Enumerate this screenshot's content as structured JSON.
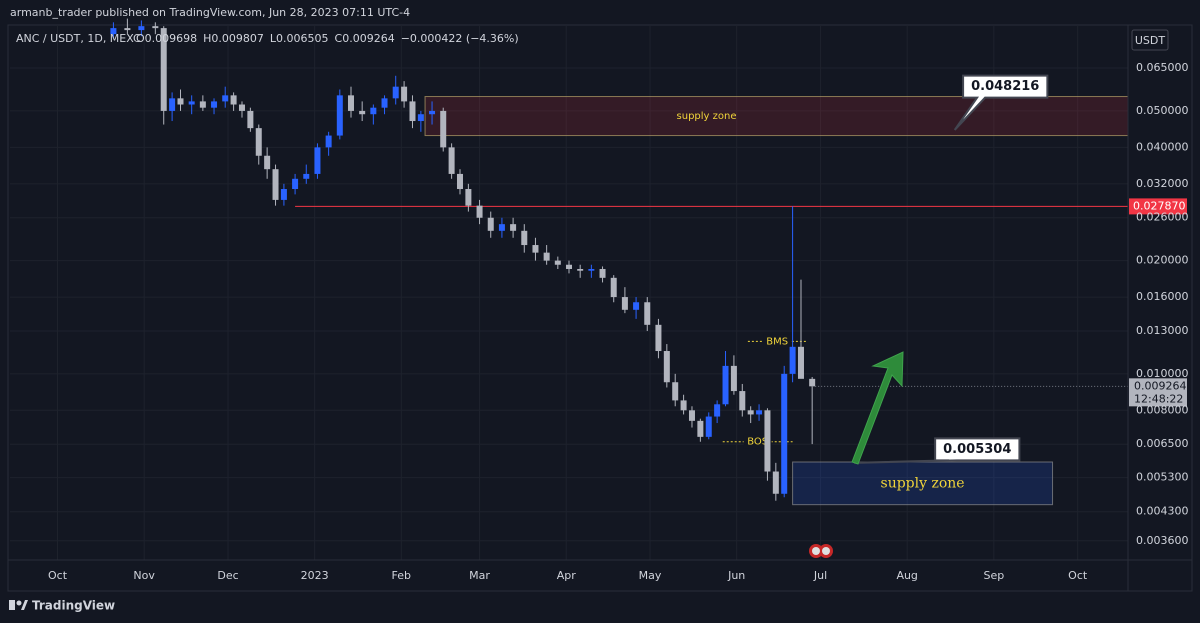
{
  "header": {
    "publisher": "armanb_trader published on TradingView.com, Jun 28, 2023 07:11 UTC-4"
  },
  "footer": {
    "brand": "TradingView"
  },
  "chart_data": {
    "type": "candlestick",
    "symbol": "ANC / USDT, 1D, MEXC",
    "ohlc_labels": [
      "O0.009698",
      "H0.009807",
      "L0.006505",
      "C0.009264",
      "−0.000422 (−4.36%)"
    ],
    "currency": "USDT",
    "log_scale": true,
    "grid": true,
    "up_color": "#2962ff",
    "down_color": "#b2b5be",
    "xlim": [
      -17,
      383
    ],
    "xticks": [
      {
        "value": 0,
        "label": "Oct"
      },
      {
        "value": 31,
        "label": "Nov"
      },
      {
        "value": 61,
        "label": "Dec"
      },
      {
        "value": 92,
        "label": "2023"
      },
      {
        "value": 123,
        "label": "Feb"
      },
      {
        "value": 151,
        "label": "Mar"
      },
      {
        "value": 182,
        "label": "Apr"
      },
      {
        "value": 212,
        "label": "May"
      },
      {
        "value": 243,
        "label": "Jun"
      },
      {
        "value": 273,
        "label": "Jul"
      },
      {
        "value": 304,
        "label": "Aug"
      },
      {
        "value": 335,
        "label": "Sep"
      },
      {
        "value": 365,
        "label": "Oct"
      }
    ],
    "ylim": [
      0.0032,
      0.0846
    ],
    "yticks": [
      {
        "value": 0.065,
        "label": "0.065000"
      },
      {
        "value": 0.05,
        "label": "0.050000"
      },
      {
        "value": 0.04,
        "label": "0.040000"
      },
      {
        "value": 0.032,
        "label": "0.032000"
      },
      {
        "value": 0.026,
        "label": "0.026000"
      },
      {
        "value": 0.02,
        "label": "0.020000"
      },
      {
        "value": 0.016,
        "label": "0.016000"
      },
      {
        "value": 0.013,
        "label": "0.013000"
      },
      {
        "value": 0.01,
        "label": "0.010000"
      },
      {
        "value": 0.008,
        "label": "0.008000"
      },
      {
        "value": 0.0065,
        "label": "0.006500"
      },
      {
        "value": 0.0053,
        "label": "0.005300"
      },
      {
        "value": 0.0043,
        "label": "0.004300"
      },
      {
        "value": 0.0036,
        "label": "0.003600"
      }
    ],
    "candles": {
      "x": [
        20,
        25,
        30,
        35,
        38,
        41,
        44,
        48,
        52,
        56,
        60,
        63,
        66,
        69,
        72,
        75,
        78,
        81,
        85,
        89,
        93,
        97,
        101,
        105,
        109,
        113,
        117,
        121,
        124,
        127,
        130,
        134,
        138,
        141,
        144,
        147,
        151,
        155,
        159,
        163,
        167,
        171,
        175,
        179,
        183,
        187,
        191,
        195,
        199,
        203,
        207,
        211,
        215,
        218,
        221,
        224,
        227,
        230,
        233,
        236,
        239,
        242,
        245,
        248,
        251,
        254,
        257,
        260,
        263,
        266,
        270
      ],
      "open": [
        0.08,
        0.083,
        0.082,
        0.084,
        0.083,
        0.05,
        0.054,
        0.052,
        0.053,
        0.051,
        0.053,
        0.055,
        0.052,
        0.05,
        0.045,
        0.038,
        0.035,
        0.029,
        0.031,
        0.033,
        0.034,
        0.04,
        0.043,
        0.055,
        0.05,
        0.049,
        0.051,
        0.054,
        0.058,
        0.053,
        0.047,
        0.049,
        0.05,
        0.04,
        0.034,
        0.031,
        0.028,
        0.026,
        0.024,
        0.025,
        0.024,
        0.022,
        0.021,
        0.02,
        0.0195,
        0.019,
        0.0188,
        0.019,
        0.018,
        0.016,
        0.0148,
        0.0155,
        0.0135,
        0.0115,
        0.0095,
        0.0085,
        0.008,
        0.0075,
        0.0068,
        0.0077,
        0.0083,
        0.0105,
        0.009,
        0.008,
        0.0078,
        0.008,
        0.0055,
        0.0048,
        0.01,
        0.0118,
        0.009698
      ],
      "high": [
        0.086,
        0.088,
        0.087,
        0.086,
        0.084,
        0.056,
        0.057,
        0.055,
        0.055,
        0.054,
        0.058,
        0.056,
        0.053,
        0.051,
        0.046,
        0.04,
        0.036,
        0.032,
        0.034,
        0.036,
        0.041,
        0.044,
        0.057,
        0.058,
        0.053,
        0.052,
        0.055,
        0.062,
        0.06,
        0.055,
        0.05,
        0.053,
        0.051,
        0.041,
        0.035,
        0.032,
        0.029,
        0.027,
        0.026,
        0.026,
        0.025,
        0.023,
        0.022,
        0.0205,
        0.02,
        0.0195,
        0.0195,
        0.0193,
        0.0183,
        0.017,
        0.016,
        0.016,
        0.014,
        0.012,
        0.01,
        0.0088,
        0.0082,
        0.0076,
        0.0079,
        0.0085,
        0.0115,
        0.0112,
        0.0094,
        0.0082,
        0.0083,
        0.0081,
        0.0058,
        0.0105,
        0.0279,
        0.0178,
        0.009807
      ],
      "low": [
        0.078,
        0.08,
        0.079,
        0.08,
        0.046,
        0.047,
        0.05,
        0.049,
        0.05,
        0.049,
        0.051,
        0.05,
        0.048,
        0.044,
        0.036,
        0.033,
        0.028,
        0.028,
        0.03,
        0.032,
        0.033,
        0.038,
        0.042,
        0.048,
        0.047,
        0.046,
        0.049,
        0.052,
        0.051,
        0.045,
        0.044,
        0.046,
        0.039,
        0.033,
        0.03,
        0.027,
        0.025,
        0.023,
        0.023,
        0.023,
        0.021,
        0.02,
        0.0195,
        0.019,
        0.0185,
        0.018,
        0.018,
        0.0175,
        0.0155,
        0.0145,
        0.014,
        0.013,
        0.011,
        0.0092,
        0.0082,
        0.0078,
        0.0072,
        0.0066,
        0.0067,
        0.0074,
        0.0082,
        0.0088,
        0.0077,
        0.0074,
        0.0075,
        0.0052,
        0.0046,
        0.0047,
        0.0095,
        0.0098,
        0.006505
      ],
      "close": [
        0.083,
        0.082,
        0.084,
        0.083,
        0.05,
        0.054,
        0.052,
        0.053,
        0.051,
        0.053,
        0.055,
        0.052,
        0.05,
        0.045,
        0.038,
        0.035,
        0.029,
        0.031,
        0.033,
        0.034,
        0.04,
        0.043,
        0.055,
        0.05,
        0.049,
        0.051,
        0.054,
        0.058,
        0.053,
        0.047,
        0.049,
        0.05,
        0.04,
        0.034,
        0.031,
        0.028,
        0.026,
        0.024,
        0.025,
        0.024,
        0.022,
        0.021,
        0.02,
        0.0195,
        0.019,
        0.0188,
        0.019,
        0.018,
        0.016,
        0.0148,
        0.0155,
        0.0135,
        0.0115,
        0.0095,
        0.0085,
        0.008,
        0.0075,
        0.0068,
        0.0077,
        0.0083,
        0.0105,
        0.009,
        0.008,
        0.0078,
        0.008,
        0.0055,
        0.0048,
        0.01,
        0.0118,
        0.0097,
        0.009264
      ]
    },
    "last_price": {
      "value": 0.009264,
      "label": "0.009264",
      "countdown": "12:48:22"
    },
    "level": {
      "value": 0.02787,
      "label": "0.027870",
      "from": 85,
      "color": "#f23645"
    },
    "zones": [
      {
        "label": "supply zone",
        "top": 0.0546,
        "bottom": 0.043,
        "from": 131.5,
        "to": 383,
        "color": "#f23645"
      },
      {
        "label": "supply zone",
        "top": 0.00583,
        "bottom": 0.00449,
        "from": 263,
        "to": 356,
        "color": "#2962ff"
      }
    ],
    "callouts": [
      {
        "label": "0.048216",
        "x": 324,
        "y": 0.058,
        "tip_x": 321,
        "tip": 0.0445
      },
      {
        "label": "0.005304",
        "x": 314,
        "y": 0.0063,
        "tip_x": 285,
        "tip": 0.0058
      }
    ],
    "markers": [
      {
        "label": "BMS",
        "value": 0.0122,
        "from": 247,
        "to": 268
      },
      {
        "label": "BOS",
        "value": 0.0066,
        "from": 238,
        "to": 263
      }
    ]
  }
}
